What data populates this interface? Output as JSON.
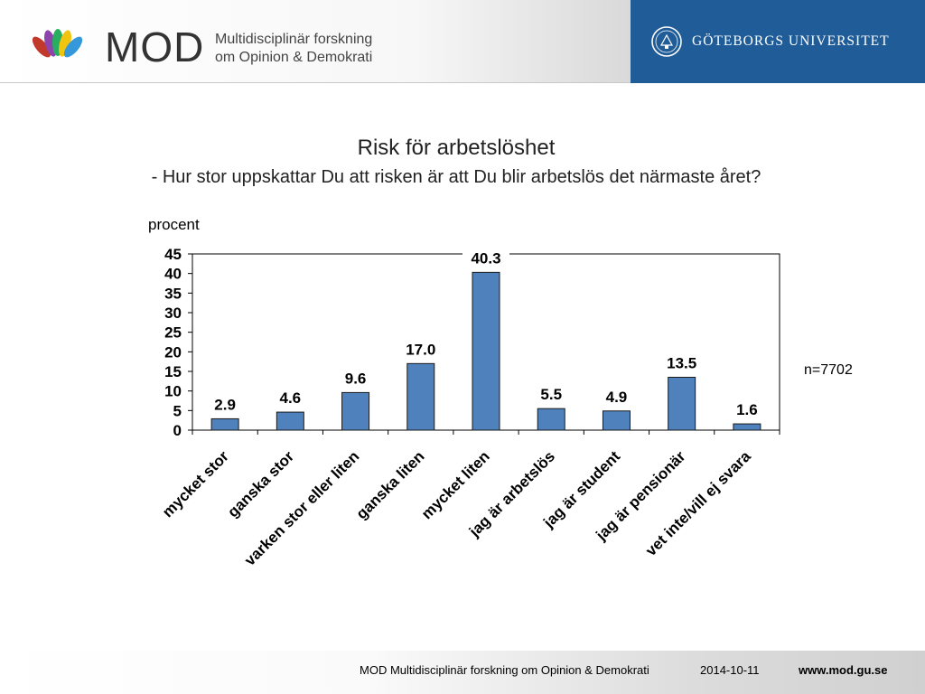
{
  "header": {
    "brand": "MOD",
    "brand_subtitle_line1": "Multidisciplinär forskning",
    "brand_subtitle_line2": "om Opinion & Demokrati",
    "university": "GÖTEBORGS UNIVERSITET",
    "university_color": "#1f5c98"
  },
  "chart_data": {
    "type": "bar",
    "title": "Risk för arbetslöshet",
    "subtitle": "- Hur stor uppskattar Du att risken är att Du blir arbetslös det närmaste året?",
    "ylabel": "procent",
    "ylim": [
      0,
      45
    ],
    "yticks": [
      0,
      5,
      10,
      15,
      20,
      25,
      30,
      35,
      40,
      45
    ],
    "categories": [
      "mycket stor",
      "ganska stor",
      "varken stor eller liten",
      "ganska liten",
      "mycket liten",
      "jag är arbetslös",
      "jag är student",
      "jag är pensionär",
      "vet inte/vill ej svara"
    ],
    "values": [
      2.9,
      4.6,
      9.6,
      17.0,
      40.3,
      5.5,
      4.9,
      13.5,
      1.6
    ],
    "value_labels": [
      "2.9",
      "4.6",
      "9.6",
      "17.0",
      "40.3",
      "5.5",
      "4.9",
      "13.5",
      "1.6"
    ],
    "bar_color": "#4f81bd",
    "grid": false,
    "annotation": "n=7702"
  },
  "footer": {
    "org": "MOD Multidisciplinär forskning om Opinion & Demokrati",
    "date": "2014-10-11",
    "url": "www.mod.gu.se"
  }
}
